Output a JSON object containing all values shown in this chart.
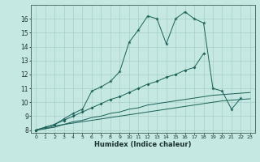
{
  "xlabel": "Humidex (Indice chaleur)",
  "background_color": "#c5e8e2",
  "grid_color": "#a8d0c8",
  "line_color": "#1a6058",
  "x_values": [
    0,
    1,
    2,
    3,
    4,
    5,
    6,
    7,
    8,
    9,
    10,
    11,
    12,
    13,
    14,
    15,
    16,
    17,
    18,
    19,
    20,
    21,
    22,
    23
  ],
  "series1": [
    8.0,
    8.1,
    8.2,
    8.4,
    8.5,
    8.6,
    8.7,
    8.8,
    8.9,
    9.0,
    9.1,
    9.2,
    9.3,
    9.4,
    9.5,
    9.6,
    9.7,
    9.8,
    9.9,
    10.0,
    10.1,
    10.15,
    10.2,
    10.25
  ],
  "series2": [
    8.0,
    8.1,
    8.3,
    8.4,
    8.6,
    8.7,
    8.9,
    9.0,
    9.2,
    9.3,
    9.5,
    9.6,
    9.8,
    9.9,
    10.0,
    10.1,
    10.2,
    10.3,
    10.4,
    10.5,
    10.55,
    10.6,
    10.65,
    10.7
  ],
  "series3": [
    8.0,
    8.2,
    8.4,
    8.8,
    9.2,
    9.5,
    10.8,
    11.1,
    11.5,
    12.2,
    14.3,
    15.2,
    16.2,
    16.0,
    14.2,
    16.0,
    16.5,
    16.0,
    15.7,
    11.0,
    10.8,
    9.5,
    10.3,
    null
  ],
  "series4": [
    8.0,
    8.2,
    8.4,
    8.7,
    9.0,
    9.3,
    9.6,
    9.9,
    10.2,
    10.4,
    10.7,
    11.0,
    11.3,
    11.5,
    11.8,
    12.0,
    12.3,
    12.5,
    13.5,
    null,
    null,
    null,
    null,
    null
  ],
  "ylim": [
    7.8,
    17.0
  ],
  "xlim": [
    -0.5,
    23.5
  ],
  "yticks": [
    8,
    9,
    10,
    11,
    12,
    13,
    14,
    15,
    16
  ],
  "xticks": [
    0,
    1,
    2,
    3,
    4,
    5,
    6,
    7,
    8,
    9,
    10,
    11,
    12,
    13,
    14,
    15,
    16,
    17,
    18,
    19,
    20,
    21,
    22,
    23
  ]
}
